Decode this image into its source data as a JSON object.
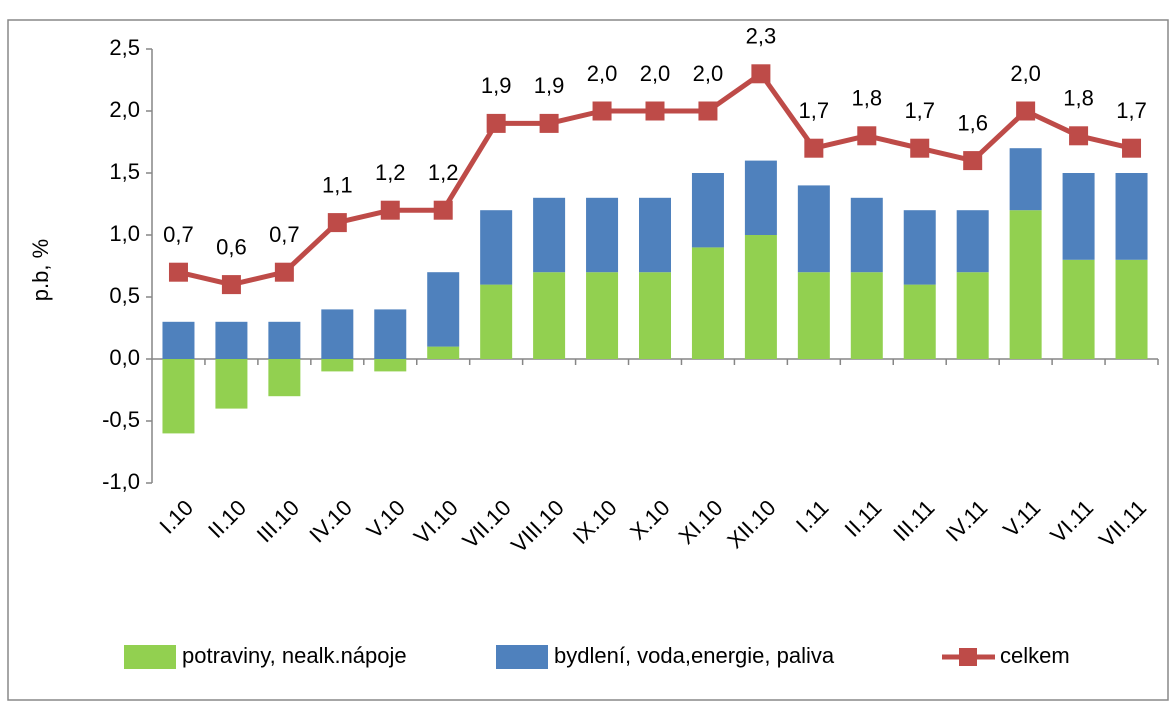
{
  "chart_data": {
    "type": "bar",
    "stacked": true,
    "y_label": "p.b, %",
    "categories": [
      "I.10",
      "II.10",
      "III.10",
      "IV.10",
      "V.10",
      "VI.10",
      "VII.10",
      "VIII.10",
      "IX.10",
      "X.10",
      "XI.10",
      "XII.10",
      "I.11",
      "II.11",
      "III.11",
      "IV.11",
      "V.11",
      "VI.11",
      "VII.11"
    ],
    "series": [
      {
        "name": "potraviny, nealk.nápoje",
        "color": "#92d050",
        "type": "bar",
        "values": [
          -0.6,
          -0.4,
          -0.3,
          -0.1,
          -0.1,
          0.1,
          0.6,
          0.7,
          0.7,
          0.7,
          0.9,
          1.0,
          0.7,
          0.7,
          0.6,
          0.7,
          1.2,
          0.8,
          0.8
        ]
      },
      {
        "name": "bydlení, voda,energie, paliva",
        "color": "#4f81bd",
        "type": "bar",
        "values": [
          0.3,
          0.3,
          0.3,
          0.4,
          0.4,
          0.6,
          0.6,
          0.6,
          0.6,
          0.6,
          0.6,
          0.6,
          0.7,
          0.6,
          0.6,
          0.5,
          0.5,
          0.7,
          0.7
        ]
      },
      {
        "name": "celkem",
        "color": "#be4b48",
        "type": "line",
        "values": [
          0.7,
          0.6,
          0.7,
          1.1,
          1.2,
          1.2,
          1.9,
          1.9,
          2.0,
          2.0,
          2.0,
          2.3,
          1.7,
          1.8,
          1.7,
          1.6,
          2.0,
          1.8,
          1.7
        ],
        "value_labels": [
          "0,7",
          "0,6",
          "0,7",
          "1,1",
          "1,2",
          "1,2",
          "1,9",
          "1,9",
          "2,0",
          "2,0",
          "2,0",
          "2,3",
          "1,7",
          "1,8",
          "1,7",
          "1,6",
          "2,0",
          "1,8",
          "1,7"
        ]
      }
    ],
    "ylim": [
      -1.0,
      2.5
    ],
    "yticks": [
      {
        "value": -1.0,
        "label": "-1,0"
      },
      {
        "value": -0.5,
        "label": "-0,5"
      },
      {
        "value": 0.0,
        "label": "0,0"
      },
      {
        "value": 0.5,
        "label": "0,5"
      },
      {
        "value": 1.0,
        "label": "1,0"
      },
      {
        "value": 1.5,
        "label": "1,5"
      },
      {
        "value": 2.0,
        "label": "2,0"
      },
      {
        "value": 2.5,
        "label": "2,5"
      }
    ],
    "legend": "bottom",
    "grid": false
  }
}
